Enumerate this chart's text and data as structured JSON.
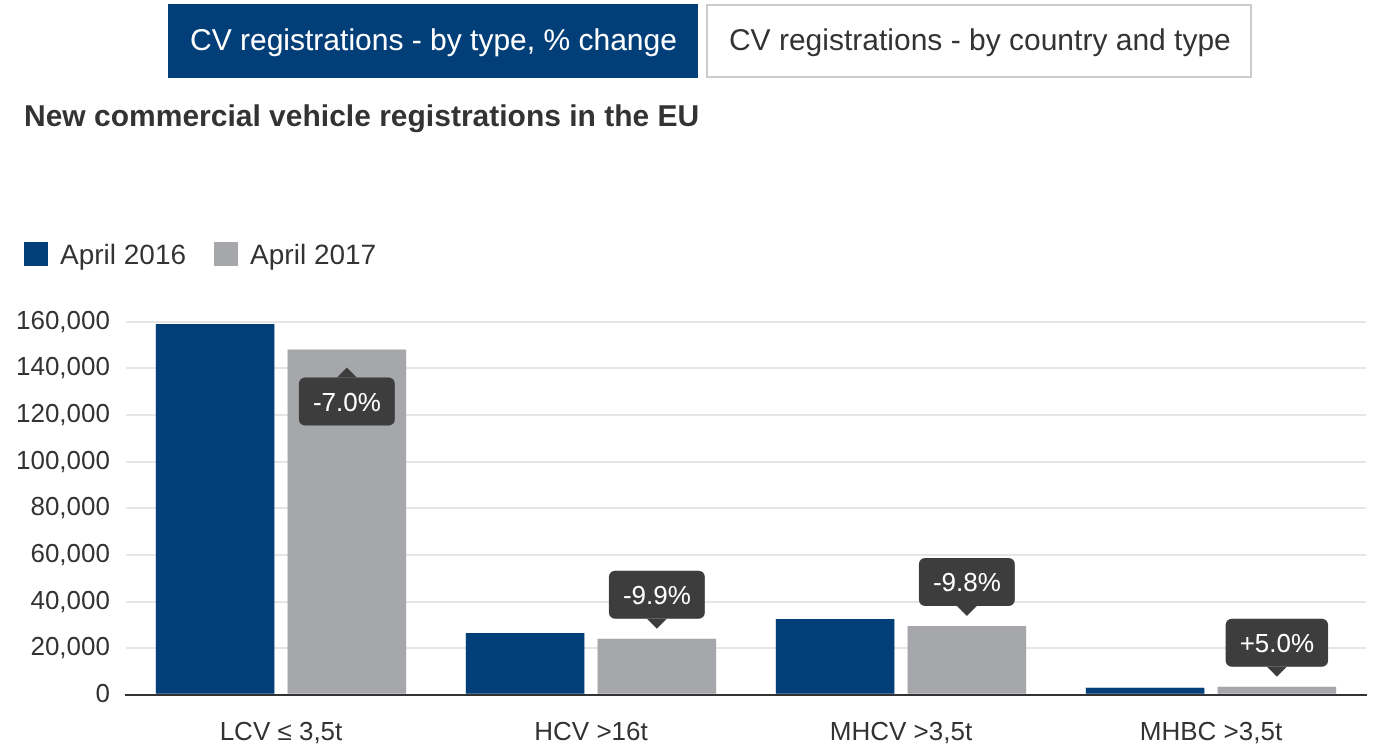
{
  "chart_data": {
    "type": "bar",
    "title": "New commercial vehicle registrations in the EU",
    "categories": [
      "LCV ≤ 3,5t",
      "HCV >16t",
      "MHCV >3,5t",
      "MHBC >3,5t"
    ],
    "series": [
      {
        "name": "April 2016",
        "color": "#023f78",
        "values": [
          159000,
          26500,
          32500,
          3000
        ]
      },
      {
        "name": "April 2017",
        "color": "#a5a7aa",
        "values": [
          148000,
          24000,
          29500,
          3500
        ]
      }
    ],
    "ylim": [
      0,
      160000
    ],
    "yticks": [
      0,
      {
        "value": 20000,
        "label": "20,000"
      },
      {
        "value": 40000,
        "label": "40,000"
      },
      {
        "value": 60000,
        "label": "60,000"
      },
      {
        "value": 80000,
        "label": "80,000"
      },
      {
        "value": 100000,
        "label": "100,000"
      },
      {
        "value": 120000,
        "label": "120,000"
      },
      {
        "value": 140000,
        "label": "140,000"
      },
      {
        "value": 160000,
        "label": "160,000"
      }
    ],
    "grid": "y",
    "legend": "top left",
    "annotations": [
      "CV registrations - by type, % change",
      "CV registrations - by country and type",
      {
        "text": "-7.0%",
        "x": "LCV ≤ 3,5t",
        "y": 148000
      },
      {
        "text": "-9.9%",
        "x": "HCV >16t",
        "y": 24000
      },
      {
        "text": "-9.8%",
        "x": "MHCV >3,5t",
        "y": 29500
      },
      {
        "text": "+5.0%",
        "x": "MHBC >3,5t",
        "y": 3500
      }
    ]
  }
}
